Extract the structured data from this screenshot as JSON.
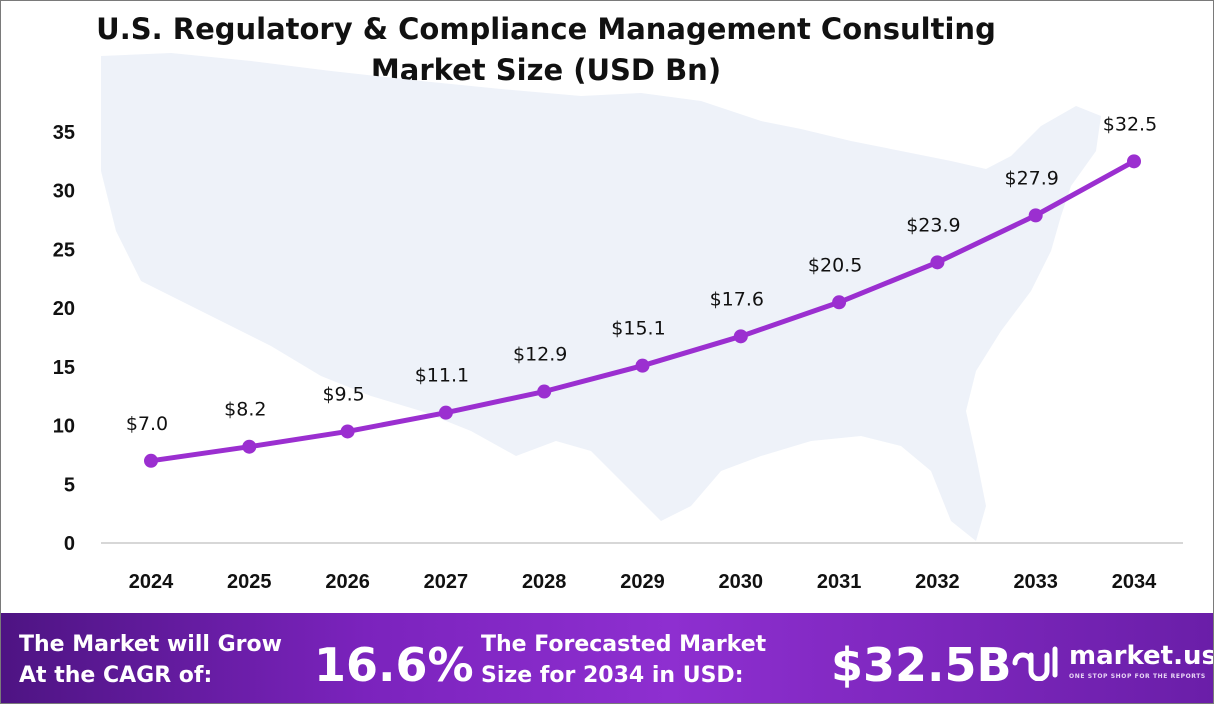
{
  "chart_data": {
    "type": "line",
    "title": "U.S. Regulatory & Compliance Management Consulting Market Size (USD Bn)",
    "title_lines": [
      "U.S. Regulatory & Compliance Management Consulting",
      "Market Size (USD Bn)"
    ],
    "categories": [
      "2024",
      "2025",
      "2026",
      "2027",
      "2028",
      "2029",
      "2030",
      "2031",
      "2032",
      "2033",
      "2034"
    ],
    "series": [
      {
        "name": "Market Size (USD Bn)",
        "values": [
          7.0,
          8.2,
          9.5,
          11.1,
          12.9,
          15.1,
          17.6,
          20.5,
          23.9,
          27.9,
          32.5
        ]
      }
    ],
    "data_labels": [
      "$7.0",
      "$8.2",
      "$9.5",
      "$11.1",
      "$12.9",
      "$15.1",
      "$17.6",
      "$20.5",
      "$23.9",
      "$27.9",
      "$32.5"
    ],
    "yticks": [
      0,
      5,
      10,
      15,
      20,
      25,
      30,
      35
    ],
    "ylim": [
      0,
      35
    ],
    "xlabel": "",
    "ylabel": "",
    "grid": false,
    "legend": "none",
    "line_color": "#9b2fd0"
  },
  "footer": {
    "cagr_lines": [
      "The Market will Grow",
      "At the CAGR of:"
    ],
    "cagr_value": "16.6%",
    "forecast_lines": [
      "The Forecasted Market",
      "Size for 2034 in USD:"
    ],
    "forecast_value": "$32.5B",
    "brand_name": "market.us",
    "brand_tagline": "ONE STOP SHOP FOR THE REPORTS"
  }
}
